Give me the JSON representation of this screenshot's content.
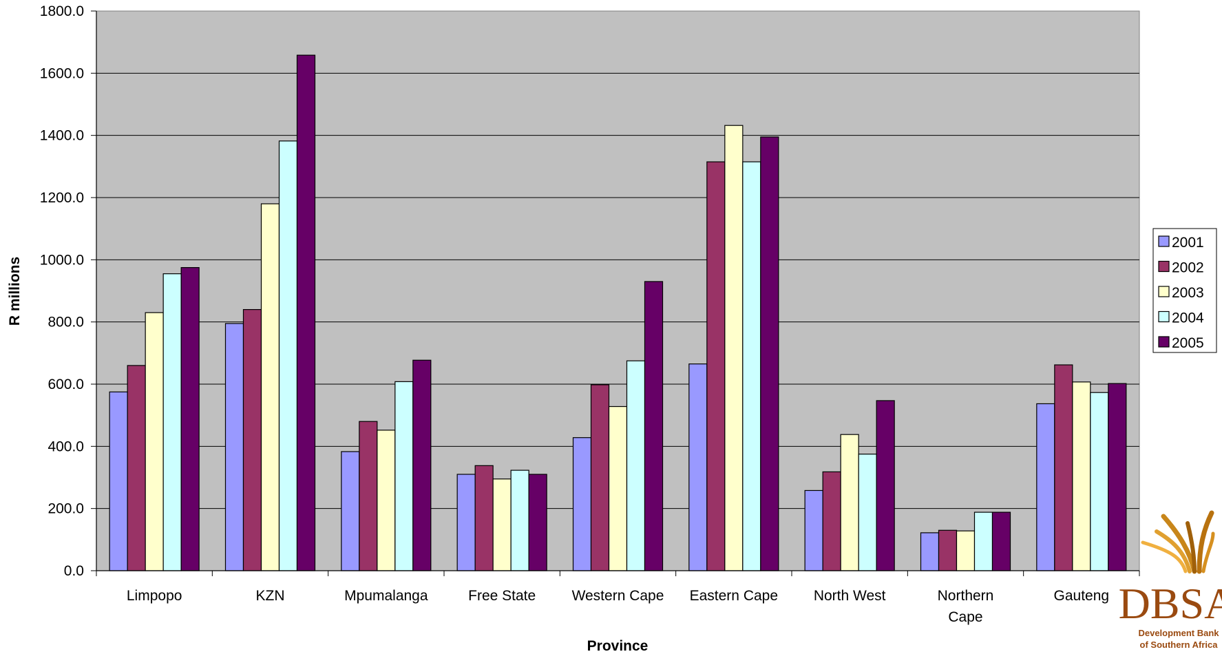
{
  "chart_data": {
    "type": "bar",
    "title": "",
    "xlabel": "Province",
    "ylabel": "R millions",
    "categories": [
      "Limpopo",
      "KZN",
      "Mpumalanga",
      "Free State",
      "Western Cape",
      "Eastern Cape",
      "North West",
      "Northern Cape",
      "Gauteng"
    ],
    "category_lines": [
      [
        "Limpopo"
      ],
      [
        "KZN"
      ],
      [
        "Mpumalanga"
      ],
      [
        "Free State"
      ],
      [
        "Western Cape"
      ],
      [
        "Eastern Cape"
      ],
      [
        "North West"
      ],
      [
        "Northern",
        "Cape"
      ],
      [
        "Gauteng"
      ]
    ],
    "series": [
      {
        "name": "2001",
        "color": "#9999FF",
        "values": [
          575,
          795,
          383,
          310,
          428,
          665,
          258,
          122,
          537
        ]
      },
      {
        "name": "2002",
        "color": "#993366",
        "values": [
          660,
          840,
          480,
          338,
          598,
          1315,
          318,
          130,
          662
        ]
      },
      {
        "name": "2003",
        "color": "#FFFFCC",
        "values": [
          830,
          1180,
          452,
          295,
          528,
          1432,
          438,
          128,
          607
        ]
      },
      {
        "name": "2004",
        "color": "#CCFFFF",
        "values": [
          955,
          1382,
          608,
          323,
          675,
          1315,
          375,
          188,
          573
        ]
      },
      {
        "name": "2005",
        "color": "#660066",
        "values": [
          975,
          1658,
          677,
          310,
          930,
          1395,
          547,
          188,
          602
        ]
      }
    ],
    "ylim": [
      0,
      1800
    ],
    "yticks": [
      "0.0",
      "200.0",
      "400.0",
      "600.0",
      "800.0",
      "1000.0",
      "1200.0",
      "1400.0",
      "1600.0",
      "1800.0"
    ],
    "grid": true,
    "legend_position": "right",
    "plot_background": "#C0C0C0"
  },
  "logo": {
    "name": "DBSA",
    "line1": "Development Bank",
    "line2": "of Southern Africa"
  }
}
